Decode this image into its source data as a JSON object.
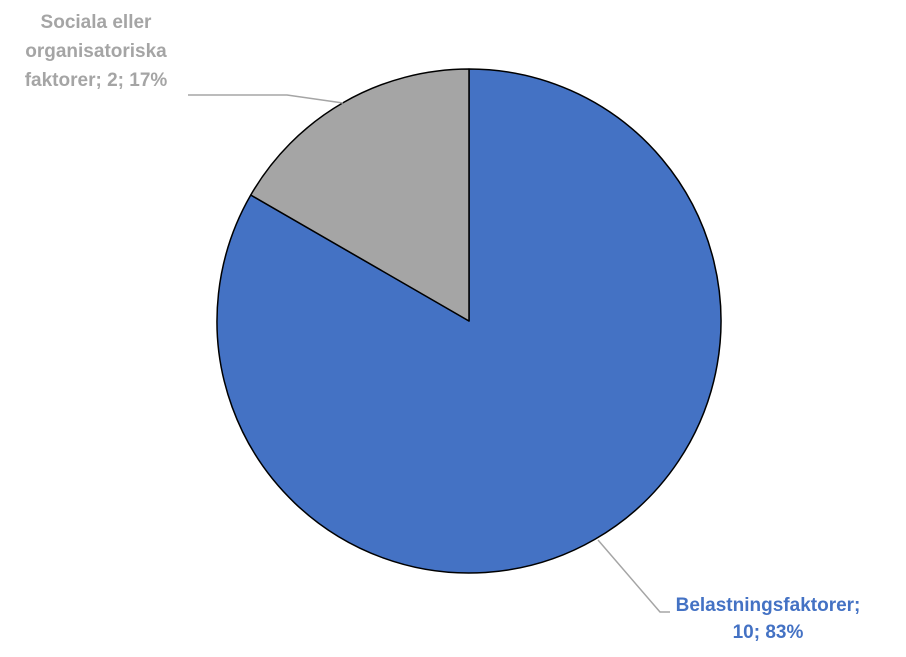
{
  "chart_data": {
    "type": "pie",
    "title": "",
    "slices": [
      {
        "name": "Belastningsfaktorer",
        "value": 10,
        "percent": 83,
        "color": "#4472C4",
        "label_lines": [
          "Belastningsfaktorer;",
          "10; 83%"
        ],
        "label_color": "#4472C4"
      },
      {
        "name": "Sociala eller organisatoriska faktorer",
        "value": 2,
        "percent": 17,
        "color": "#A5A5A5",
        "label_lines": [
          "Sociala eller",
          "organisatoriska",
          "faktorer; 2; 17%"
        ],
        "label_color": "#A5A5A5"
      }
    ],
    "start_angle": "12 o'clock",
    "direction": "clockwise",
    "legend": "none"
  }
}
